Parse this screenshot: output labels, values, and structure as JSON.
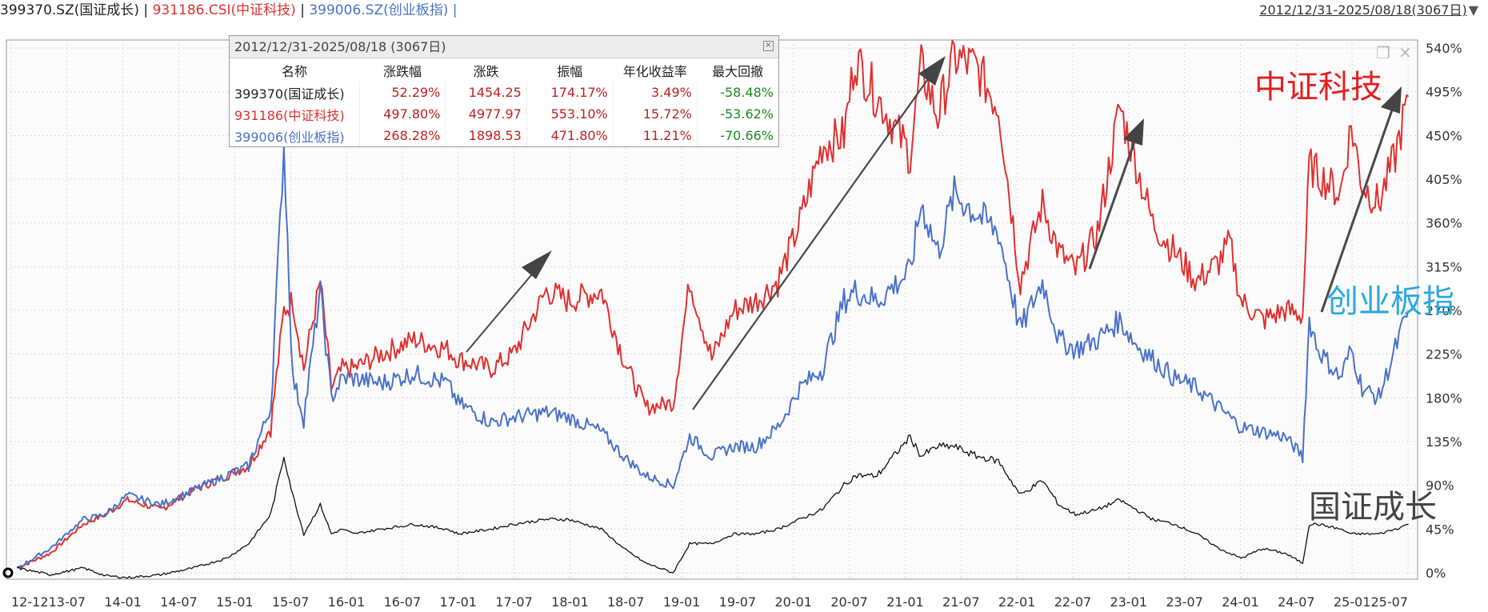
{
  "header": {
    "series": [
      {
        "label": "399370.SZ(国证成长)",
        "color": "#222222"
      },
      {
        "label": "931186.CSI(中证科技)",
        "color": "#e03030"
      },
      {
        "label": "399006.SZ(创业板指)",
        "color": "#4a72c8"
      }
    ],
    "separator": "|",
    "date_range": "2012/12/31-2025/08/18(3067日)"
  },
  "stats_panel": {
    "title": "2012/12/31-2025/08/18 (3067日)",
    "columns": [
      "名称",
      "涨跌幅",
      "涨跌",
      "振幅",
      "年化收益率",
      "最大回撤"
    ],
    "rows": [
      {
        "name": "399370(国证成长)",
        "color": "#222222",
        "change_pct": "52.29%",
        "change": "1454.25",
        "amplitude": "174.17%",
        "annual": "3.49%",
        "drawdown": "-58.48%"
      },
      {
        "name": "931186(中证科技)",
        "color": "#e03030",
        "change_pct": "497.80%",
        "change": "4977.97",
        "amplitude": "553.10%",
        "annual": "15.72%",
        "drawdown": "-53.62%"
      },
      {
        "name": "399006(创业板指)",
        "color": "#4a72c8",
        "change_pct": "268.28%",
        "change": "1898.53",
        "amplitude": "471.80%",
        "annual": "11.21%",
        "drawdown": "-70.66%"
      }
    ],
    "value_color": "#c02020",
    "drawdown_color": "#1a8a1a"
  },
  "chart_data": {
    "type": "line",
    "x_ticks": [
      "12-12",
      "13-07",
      "14-01",
      "14-07",
      "15-01",
      "15-07",
      "16-01",
      "16-07",
      "17-01",
      "17-07",
      "18-01",
      "18-07",
      "19-01",
      "19-07",
      "20-01",
      "20-07",
      "21-01",
      "21-07",
      "22-01",
      "22-07",
      "23-01",
      "23-07",
      "24-01",
      "24-07",
      "25-01",
      "25-07"
    ],
    "y_ticks": [
      "0%",
      "45%",
      "90%",
      "135%",
      "180%",
      "225%",
      "270%",
      "315%",
      "360%",
      "405%",
      "450%",
      "495%",
      "540%"
    ],
    "ylim": [
      0,
      540
    ],
    "grid": true,
    "series": [
      {
        "name": "中证科技",
        "color": "#e03030",
        "x": [
          2013.0,
          2013.3,
          2013.6,
          2013.8,
          2014.0,
          2014.3,
          2014.6,
          2014.9,
          2015.1,
          2015.3,
          2015.42,
          2015.5,
          2015.6,
          2015.75,
          2015.85,
          2015.95,
          2016.05,
          2016.3,
          2016.6,
          2016.9,
          2017.0,
          2017.3,
          2017.5,
          2017.8,
          2018.0,
          2018.3,
          2018.5,
          2018.7,
          2018.95,
          2019.1,
          2019.3,
          2019.5,
          2019.7,
          2019.9,
          2020.1,
          2020.3,
          2020.5,
          2020.6,
          2020.8,
          2021.1,
          2021.2,
          2021.35,
          2021.5,
          2021.7,
          2021.9,
          2022.1,
          2022.3,
          2022.45,
          2022.6,
          2022.8,
          2023.0,
          2023.15,
          2023.3,
          2023.5,
          2023.7,
          2023.9,
          2024.0,
          2024.1,
          2024.3,
          2024.5,
          2024.66,
          2024.72,
          2024.8,
          2025.0,
          2025.1,
          2025.2,
          2025.35,
          2025.5,
          2025.62
        ],
        "y": [
          5,
          20,
          50,
          60,
          75,
          65,
          85,
          100,
          110,
          150,
          270,
          280,
          210,
          300,
          190,
          210,
          210,
          225,
          240,
          230,
          220,
          210,
          225,
          290,
          280,
          290,
          220,
          170,
          175,
          300,
          220,
          270,
          280,
          300,
          360,
          440,
          450,
          530,
          490,
          430,
          520,
          470,
          530,
          520,
          480,
          300,
          380,
          330,
          310,
          350,
          480,
          420,
          360,
          330,
          300,
          320,
          340,
          280,
          260,
          270,
          265,
          420,
          410,
          390,
          460,
          400,
          380,
          430,
          490
        ]
      },
      {
        "name": "创业板指",
        "color": "#4a72c8",
        "x": [
          2013.0,
          2013.3,
          2013.6,
          2013.8,
          2014.0,
          2014.3,
          2014.6,
          2014.9,
          2015.1,
          2015.3,
          2015.42,
          2015.5,
          2015.6,
          2015.75,
          2015.85,
          2015.95,
          2016.05,
          2016.3,
          2016.6,
          2016.9,
          2017.0,
          2017.3,
          2017.5,
          2017.8,
          2018.0,
          2018.3,
          2018.5,
          2018.7,
          2018.95,
          2019.1,
          2019.3,
          2019.5,
          2019.7,
          2019.9,
          2020.1,
          2020.3,
          2020.5,
          2020.6,
          2020.8,
          2021.1,
          2021.2,
          2021.35,
          2021.5,
          2021.7,
          2021.9,
          2022.1,
          2022.3,
          2022.45,
          2022.6,
          2022.8,
          2023.0,
          2023.15,
          2023.3,
          2023.5,
          2023.7,
          2023.9,
          2024.0,
          2024.1,
          2024.3,
          2024.5,
          2024.66,
          2024.72,
          2024.8,
          2025.0,
          2025.1,
          2025.2,
          2025.35,
          2025.5,
          2025.62
        ],
        "y": [
          5,
          25,
          55,
          60,
          80,
          70,
          85,
          100,
          110,
          170,
          440,
          200,
          160,
          290,
          180,
          200,
          200,
          195,
          205,
          195,
          175,
          155,
          160,
          165,
          160,
          145,
          120,
          100,
          90,
          140,
          120,
          130,
          130,
          150,
          190,
          210,
          280,
          290,
          280,
          310,
          380,
          330,
          390,
          370,
          350,
          250,
          300,
          240,
          230,
          240,
          260,
          235,
          220,
          200,
          190,
          170,
          160,
          150,
          145,
          140,
          120,
          260,
          230,
          200,
          230,
          190,
          180,
          230,
          270
        ]
      },
      {
        "name": "国证成长",
        "color": "#111111",
        "x": [
          2013.0,
          2013.3,
          2013.6,
          2013.8,
          2014.0,
          2014.3,
          2014.6,
          2014.9,
          2015.1,
          2015.3,
          2015.42,
          2015.5,
          2015.6,
          2015.75,
          2015.85,
          2015.95,
          2016.05,
          2016.3,
          2016.6,
          2016.9,
          2017.0,
          2017.3,
          2017.5,
          2017.8,
          2018.0,
          2018.3,
          2018.5,
          2018.7,
          2018.95,
          2019.1,
          2019.3,
          2019.5,
          2019.7,
          2019.9,
          2020.1,
          2020.3,
          2020.5,
          2020.6,
          2020.8,
          2021.1,
          2021.2,
          2021.35,
          2021.5,
          2021.7,
          2021.9,
          2022.1,
          2022.3,
          2022.45,
          2022.6,
          2022.8,
          2023.0,
          2023.15,
          2023.3,
          2023.5,
          2023.7,
          2023.9,
          2024.0,
          2024.1,
          2024.3,
          2024.5,
          2024.66,
          2024.72,
          2024.8,
          2025.0,
          2025.1,
          2025.2,
          2025.35,
          2025.5,
          2025.62
        ],
        "y": [
          5,
          -2,
          5,
          -3,
          -5,
          -2,
          5,
          15,
          30,
          60,
          120,
          80,
          40,
          70,
          40,
          45,
          40,
          45,
          50,
          45,
          40,
          45,
          50,
          55,
          55,
          45,
          25,
          10,
          0,
          30,
          30,
          40,
          40,
          45,
          55,
          65,
          90,
          100,
          100,
          140,
          120,
          130,
          130,
          120,
          115,
          80,
          95,
          70,
          60,
          65,
          75,
          65,
          55,
          50,
          40,
          25,
          20,
          15,
          25,
          20,
          10,
          50,
          50,
          45,
          40,
          40,
          40,
          45,
          50
        ]
      }
    ],
    "annotations": [
      "中证科技",
      "创业板指",
      "国证成长"
    ]
  },
  "watermark": {
    "color": "#2aa8e0"
  }
}
